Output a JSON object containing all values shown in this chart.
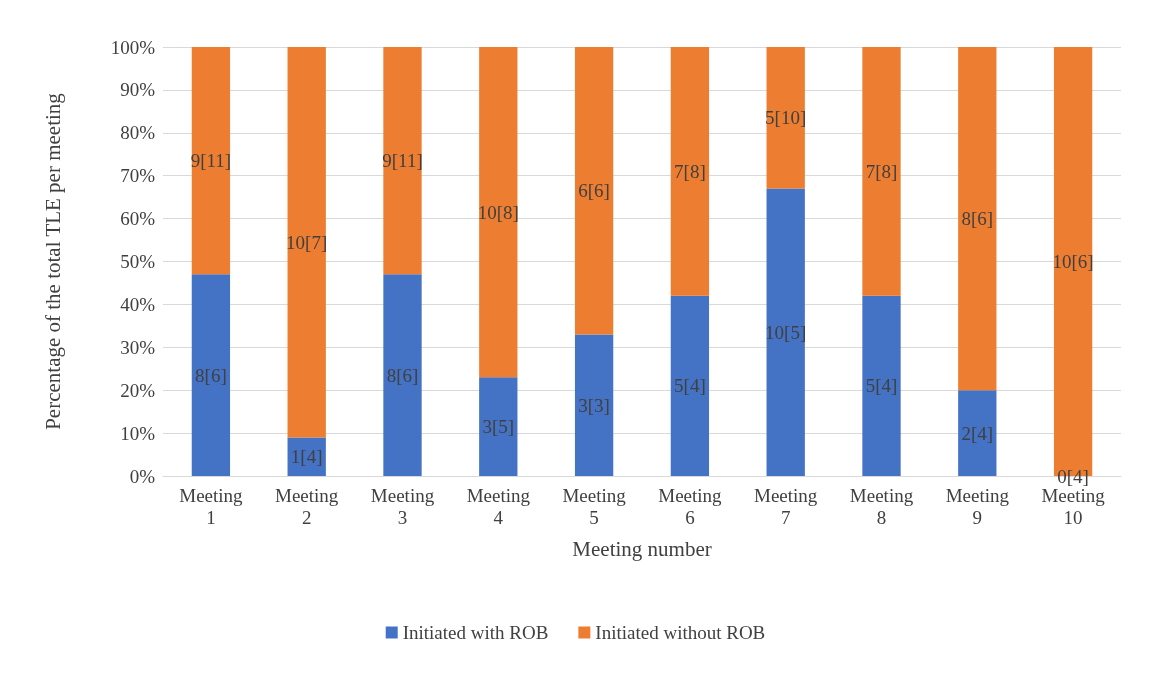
{
  "chart_data": {
    "type": "bar",
    "stacked": true,
    "categories": [
      "Meeting 1",
      "Meeting 2",
      "Meeting 3",
      "Meeting 4",
      "Meeting 5",
      "Meeting 6",
      "Meeting 7",
      "Meeting 8",
      "Meeting 9",
      "Meeting 10"
    ],
    "series": [
      {
        "name": "Initiated with ROB",
        "color": "#4472c4",
        "values": [
          47,
          9,
          47,
          23,
          33,
          42,
          67,
          42,
          20,
          0
        ]
      },
      {
        "name": "Initiated without ROB",
        "color": "#ed7d31",
        "values": [
          53,
          91,
          53,
          77,
          67,
          58,
          33,
          58,
          80,
          100
        ]
      }
    ],
    "annotations": [
      "8[6]",
      "1[4]",
      "8[6]",
      "3[5]",
      "3[3]",
      "5[4]",
      "10[5]",
      "5[4]",
      "2[4]",
      "0[4]",
      "9[11]",
      "10[7]",
      "9[11]",
      "10[8]",
      "6[6]",
      "7[8]",
      "5[10]",
      "7[8]",
      "8[6]",
      "10[6]"
    ],
    "xlabel": "Meeting number",
    "ylabel": "Percentage of the total TLE per meeting",
    "ylim": [
      0,
      100
    ],
    "yticks": [
      {
        "value": 0,
        "label": "0%"
      },
      {
        "value": 10,
        "label": "10%"
      },
      {
        "value": 20,
        "label": "20%"
      },
      {
        "value": 30,
        "label": "30%"
      },
      {
        "value": 40,
        "label": "40%"
      },
      {
        "value": 50,
        "label": "50%"
      },
      {
        "value": 60,
        "label": "60%"
      },
      {
        "value": 70,
        "label": "70%"
      },
      {
        "value": 80,
        "label": "80%"
      },
      {
        "value": 90,
        "label": "90%"
      },
      {
        "value": 100,
        "label": "100%"
      }
    ],
    "grid": "y",
    "legend": "bottom"
  }
}
